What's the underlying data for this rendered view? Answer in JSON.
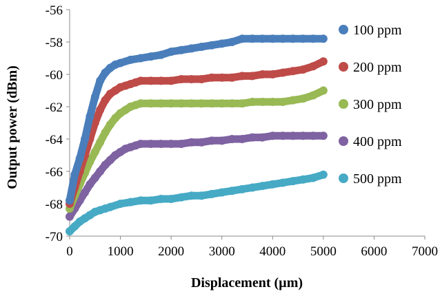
{
  "chart_data": {
    "type": "scatter",
    "title": "",
    "xlabel": "Displacement (µm)",
    "ylabel": "Output  power (dBm)",
    "xlim": [
      0,
      7000
    ],
    "ylim": [
      -70,
      -56
    ],
    "xticks": [
      0,
      1000,
      2000,
      3000,
      4000,
      5000,
      6000,
      7000
    ],
    "yticks": [
      -70,
      -68,
      -66,
      -64,
      -62,
      -60,
      -58,
      -56
    ],
    "grid": false,
    "legend_position": "right",
    "series": [
      {
        "name": "100 ppm",
        "color": "#4a7ebb",
        "x": [
          0,
          100,
          200,
          300,
          400,
          500,
          600,
          700,
          800,
          900,
          1000,
          1200,
          1400,
          1600,
          1800,
          2000,
          2200,
          2400,
          2600,
          2800,
          3000,
          3200,
          3400,
          3600,
          3800,
          4000,
          4200,
          4400,
          4600,
          4800,
          5000
        ],
        "y": [
          -67.8,
          -66.2,
          -65.2,
          -64.0,
          -62.6,
          -61.4,
          -60.4,
          -59.9,
          -59.6,
          -59.4,
          -59.3,
          -59.1,
          -59.0,
          -58.9,
          -58.8,
          -58.6,
          -58.5,
          -58.4,
          -58.3,
          -58.2,
          -58.1,
          -58.0,
          -57.8,
          -57.8,
          -57.8,
          -57.8,
          -57.8,
          -57.8,
          -57.8,
          -57.8,
          -57.8
        ]
      },
      {
        "name": "200 ppm",
        "color": "#be4b48",
        "x": [
          0,
          100,
          200,
          300,
          400,
          500,
          600,
          700,
          800,
          900,
          1000,
          1100,
          1200,
          1300,
          1400,
          1600,
          1800,
          2000,
          2200,
          2400,
          2600,
          2800,
          3000,
          3200,
          3400,
          3600,
          3800,
          4000,
          4200,
          4400,
          4600,
          4800,
          5000
        ],
        "y": [
          -68.0,
          -67.0,
          -66.0,
          -65.0,
          -64.0,
          -63.0,
          -62.2,
          -61.6,
          -61.2,
          -61.0,
          -60.8,
          -60.7,
          -60.6,
          -60.5,
          -60.4,
          -60.4,
          -60.4,
          -60.4,
          -60.3,
          -60.3,
          -60.3,
          -60.2,
          -60.2,
          -60.2,
          -60.1,
          -60.1,
          -60.0,
          -60.0,
          -59.9,
          -59.8,
          -59.7,
          -59.5,
          -59.2
        ]
      },
      {
        "name": "300 ppm",
        "color": "#98b954",
        "x": [
          0,
          100,
          200,
          300,
          400,
          500,
          600,
          700,
          800,
          900,
          1000,
          1100,
          1200,
          1300,
          1400,
          1600,
          1800,
          2000,
          2200,
          2400,
          2600,
          2800,
          3000,
          3200,
          3400,
          3600,
          3800,
          4000,
          4200,
          4400,
          4600,
          4800,
          5000
        ],
        "y": [
          -68.3,
          -67.5,
          -66.8,
          -66.1,
          -65.4,
          -64.8,
          -64.2,
          -63.6,
          -63.1,
          -62.7,
          -62.4,
          -62.2,
          -62.0,
          -61.9,
          -61.8,
          -61.8,
          -61.8,
          -61.8,
          -61.8,
          -61.8,
          -61.8,
          -61.8,
          -61.8,
          -61.8,
          -61.8,
          -61.7,
          -61.7,
          -61.7,
          -61.7,
          -61.6,
          -61.5,
          -61.3,
          -61.0
        ]
      },
      {
        "name": "400 ppm",
        "color": "#7e62a1",
        "x": [
          0,
          100,
          200,
          300,
          400,
          500,
          600,
          700,
          800,
          900,
          1000,
          1100,
          1200,
          1300,
          1400,
          1600,
          1800,
          2000,
          2200,
          2400,
          2600,
          2800,
          3000,
          3200,
          3400,
          3600,
          3800,
          4000,
          4200,
          4400,
          4600,
          4800,
          5000
        ],
        "y": [
          -68.8,
          -68.3,
          -67.8,
          -67.3,
          -66.8,
          -66.4,
          -66.0,
          -65.6,
          -65.3,
          -65.0,
          -64.8,
          -64.6,
          -64.5,
          -64.4,
          -64.3,
          -64.3,
          -64.3,
          -64.3,
          -64.3,
          -64.2,
          -64.2,
          -64.1,
          -64.1,
          -64.0,
          -64.0,
          -63.9,
          -63.9,
          -63.8,
          -63.8,
          -63.8,
          -63.8,
          -63.8,
          -63.8
        ]
      },
      {
        "name": "500 ppm",
        "color": "#46aac5",
        "x": [
          0,
          100,
          200,
          300,
          400,
          500,
          600,
          700,
          800,
          1000,
          1200,
          1400,
          1600,
          1800,
          2000,
          2200,
          2400,
          2600,
          2800,
          3000,
          3200,
          3400,
          3600,
          3800,
          4000,
          4200,
          4400,
          4600,
          4800,
          5000
        ],
        "y": [
          -69.7,
          -69.4,
          -69.1,
          -68.9,
          -68.7,
          -68.5,
          -68.4,
          -68.3,
          -68.2,
          -68.0,
          -67.9,
          -67.8,
          -67.8,
          -67.7,
          -67.7,
          -67.6,
          -67.5,
          -67.5,
          -67.4,
          -67.3,
          -67.2,
          -67.1,
          -67.0,
          -66.9,
          -66.8,
          -66.7,
          -66.6,
          -66.5,
          -66.4,
          -66.2
        ]
      }
    ]
  }
}
